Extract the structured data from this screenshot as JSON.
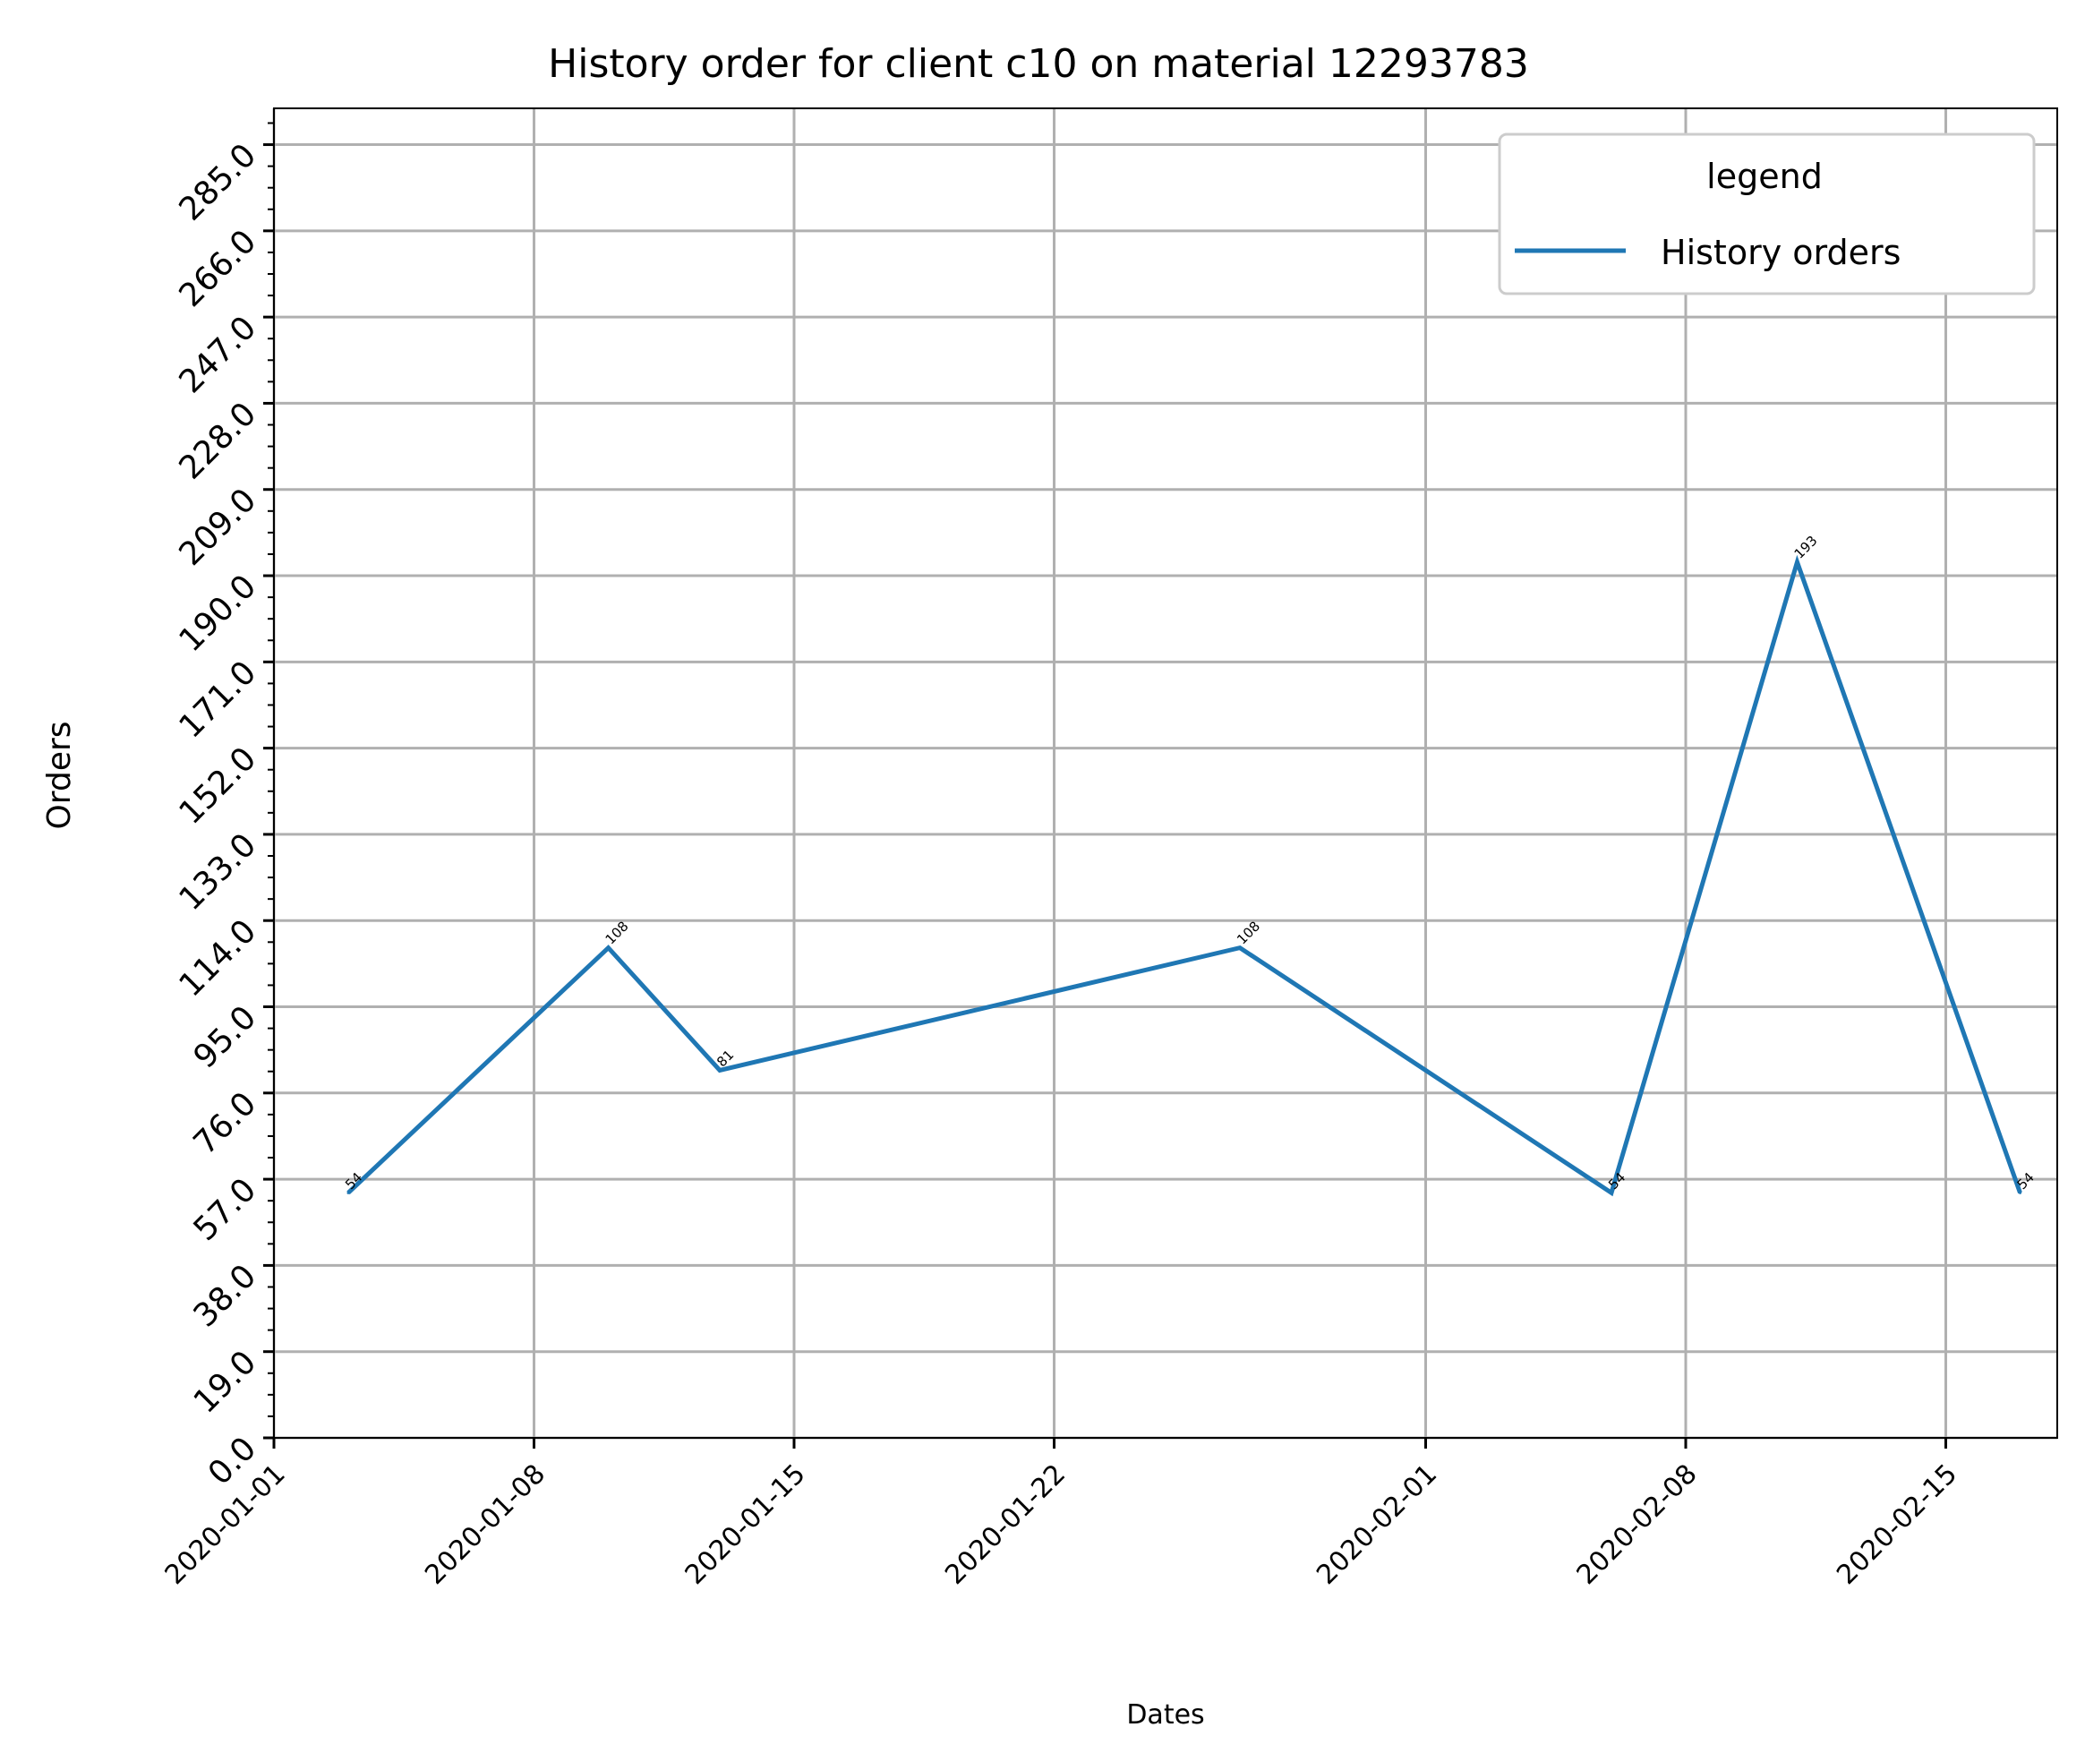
{
  "chart_data": {
    "type": "line",
    "title": "History order for client c10 on material 12293783",
    "xlabel": "Dates",
    "ylabel": "Orders",
    "x": [
      "2020-01-03",
      "2020-01-10",
      "2020-01-13",
      "2020-01-27",
      "2020-02-06",
      "2020-02-11",
      "2020-02-17"
    ],
    "series": [
      {
        "name": "History orders",
        "values": [
          54,
          108,
          81,
          108,
          54,
          193,
          54
        ],
        "color": "#1f77b4"
      }
    ],
    "data_labels": [
      "54",
      "108",
      "81",
      "108",
      "54",
      "193",
      "54"
    ],
    "xlim": [
      "2020-01-01",
      "2020-02-18"
    ],
    "x_ticks": [
      "2020-01-01",
      "2020-01-08",
      "2020-01-15",
      "2020-01-22",
      "2020-02-01",
      "2020-02-08",
      "2020-02-15"
    ],
    "ylim": [
      0,
      293
    ],
    "y_ticks": [
      "0.0",
      "19.0",
      "38.0",
      "57.0",
      "76.0",
      "95.0",
      "114.0",
      "133.0",
      "152.0",
      "171.0",
      "190.0",
      "209.0",
      "228.0",
      "247.0",
      "266.0",
      "285.0"
    ],
    "grid": true,
    "legend": {
      "title": "legend",
      "placement": "top-right"
    }
  }
}
